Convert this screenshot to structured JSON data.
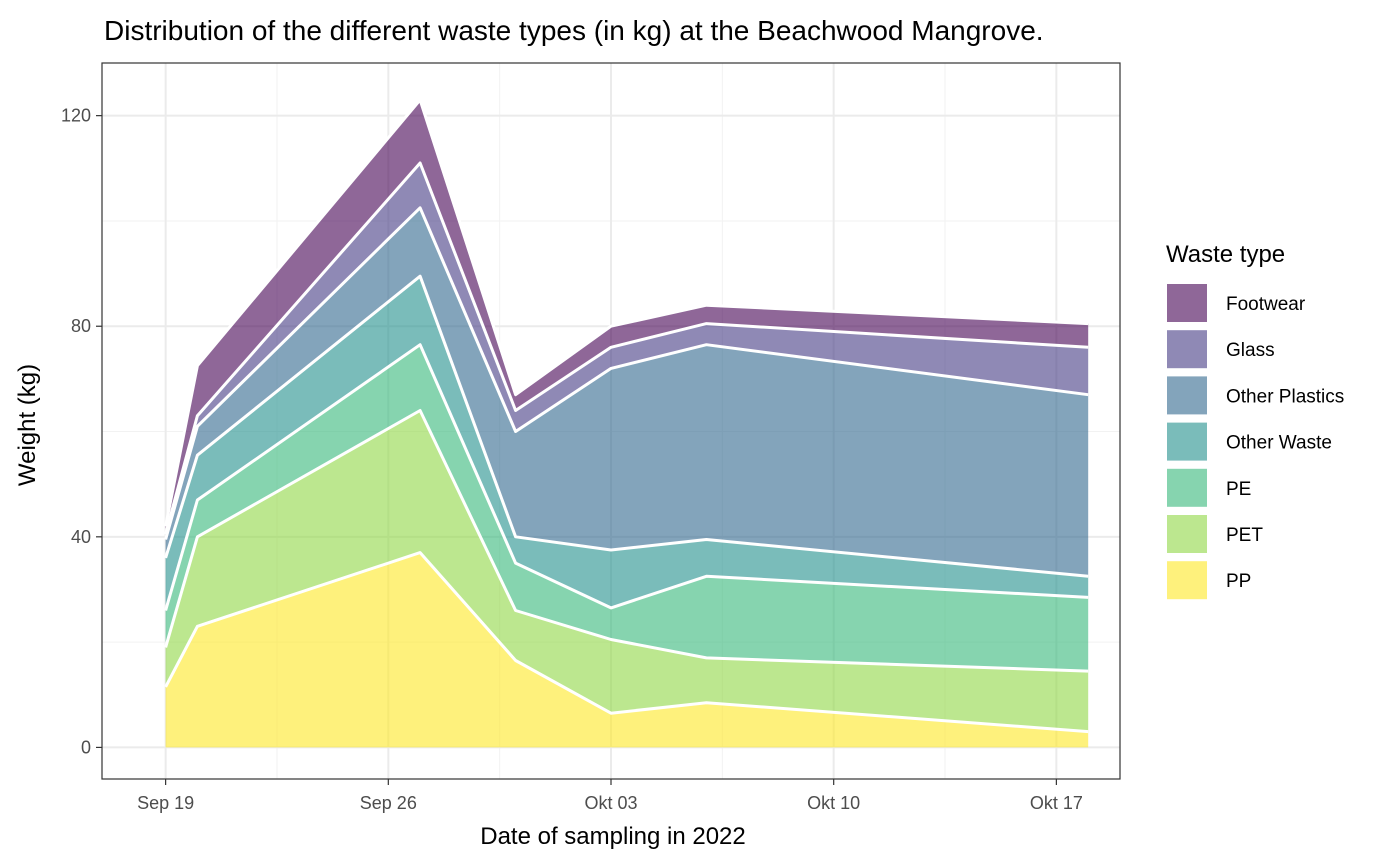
{
  "chart_data": {
    "type": "area",
    "stacked": true,
    "title": "Distribution of the different waste types (in kg) at the Beachwood Mangrove.",
    "xlabel": "Date of sampling in 2022",
    "ylabel": "Weight (kg)",
    "x": [
      "2022-09-19",
      "2022-09-20",
      "2022-09-27",
      "2022-09-30",
      "2022-10-03",
      "2022-10-06",
      "2022-10-18"
    ],
    "xlim": [
      "2022-09-17",
      "2022-10-19"
    ],
    "ylim": [
      -6,
      130
    ],
    "x_ticks": [
      {
        "date": "2022-09-19",
        "label": "Sep 19"
      },
      {
        "date": "2022-09-26",
        "label": "Sep 26"
      },
      {
        "date": "2022-10-03",
        "label": "Okt 03"
      },
      {
        "date": "2022-10-10",
        "label": "Okt 10"
      },
      {
        "date": "2022-10-17",
        "label": "Okt 17"
      }
    ],
    "y_ticks": [
      0,
      40,
      80,
      120
    ],
    "grid": true,
    "legend": {
      "title": "Waste type",
      "position": "right",
      "order": [
        "Footwear",
        "Glass",
        "Other Plastics",
        "Other Waste",
        "PE",
        "PET",
        "PP"
      ]
    },
    "series": [
      {
        "name": "PP",
        "color": "#FDE725",
        "values": [
          11.5,
          23,
          37,
          16.5,
          6.5,
          8.5,
          3
        ]
      },
      {
        "name": "PET",
        "color": "#8FD744",
        "values": [
          7.5,
          17,
          27,
          9.5,
          14,
          8.5,
          11.5
        ]
      },
      {
        "name": "PE",
        "color": "#35B779",
        "values": [
          7,
          7,
          12.5,
          9,
          6,
          15.5,
          14
        ]
      },
      {
        "name": "Other Waste",
        "color": "#21908C",
        "values": [
          10,
          8.5,
          13,
          5,
          11,
          7,
          4
        ]
      },
      {
        "name": "Other Plastics",
        "color": "#31688E",
        "values": [
          3.5,
          5.5,
          13,
          20,
          34.5,
          37,
          34.5
        ]
      },
      {
        "name": "Glass",
        "color": "#443A83",
        "values": [
          1,
          2,
          8.5,
          4,
          4,
          4,
          9
        ]
      },
      {
        "name": "Footwear",
        "color": "#440154",
        "values": [
          1.5,
          9.5,
          12,
          3,
          4,
          3.5,
          4.5
        ]
      }
    ]
  }
}
